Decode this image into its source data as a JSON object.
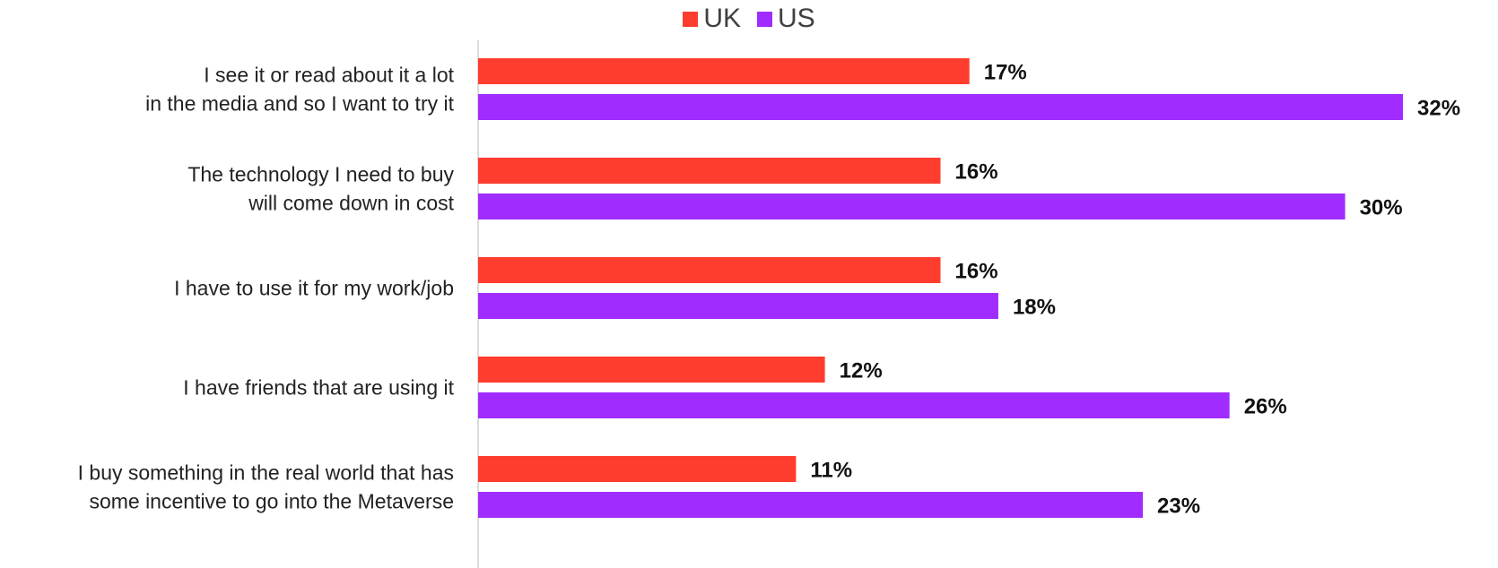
{
  "chart_data": {
    "type": "bar",
    "orientation": "horizontal",
    "categories": [
      [
        "I see it or read about it a lot",
        "in the media and so I want to try it"
      ],
      [
        "The technology I need to buy",
        "will come down in cost"
      ],
      [
        "I have to use it for my work/job"
      ],
      [
        "I have friends that are using it"
      ],
      [
        "I buy something in the real world that has",
        "some incentive to go into the Metaverse"
      ]
    ],
    "series": [
      {
        "name": "UK",
        "color": "#ff3d2e",
        "values": [
          17,
          16,
          16,
          12,
          11
        ],
        "labels": [
          "17%",
          "16%",
          "16%",
          "12%",
          "11%"
        ]
      },
      {
        "name": "US",
        "color": "#a12cff",
        "values": [
          32,
          30,
          18,
          26,
          23
        ],
        "labels": [
          "32%",
          "30%",
          "18%",
          "26%",
          "23%"
        ]
      }
    ],
    "xlim": [
      0,
      34
    ],
    "legend_position": "top-center",
    "grid": false
  }
}
